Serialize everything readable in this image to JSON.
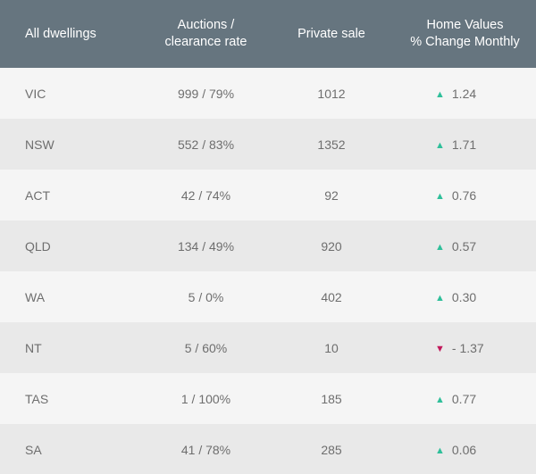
{
  "headers": {
    "state": "All dwellings",
    "auctions_line1": "Auctions /",
    "auctions_line2": "clearance rate",
    "private_sale": "Private sale",
    "home_values_line1": "Home Values",
    "home_values_line2": "% Change Monthly"
  },
  "colors": {
    "header_bg": "#66757f",
    "up": "#2fbf9a",
    "down": "#c2185b"
  },
  "rows": [
    {
      "state": "VIC",
      "auctions": "999 / 79%",
      "private_sale": "1012",
      "direction": "up",
      "arrow": "▲",
      "change": "1.24"
    },
    {
      "state": "NSW",
      "auctions": "552 / 83%",
      "private_sale": "1352",
      "direction": "up",
      "arrow": "▲",
      "change": "1.71"
    },
    {
      "state": "ACT",
      "auctions": "42 / 74%",
      "private_sale": "92",
      "direction": "up",
      "arrow": "▲",
      "change": "0.76"
    },
    {
      "state": "QLD",
      "auctions": "134 / 49%",
      "private_sale": "920",
      "direction": "up",
      "arrow": "▲",
      "change": "0.57"
    },
    {
      "state": "WA",
      "auctions": "5 / 0%",
      "private_sale": "402",
      "direction": "up",
      "arrow": "▲",
      "change": "0.30"
    },
    {
      "state": "NT",
      "auctions": "5 / 60%",
      "private_sale": "10",
      "direction": "down",
      "arrow": "▼",
      "change": "- 1.37"
    },
    {
      "state": "TAS",
      "auctions": "1 / 100%",
      "private_sale": "185",
      "direction": "up",
      "arrow": "▲",
      "change": "0.77"
    },
    {
      "state": "SA",
      "auctions": "41 / 78%",
      "private_sale": "285",
      "direction": "up",
      "arrow": "▲",
      "change": "0.06"
    }
  ]
}
